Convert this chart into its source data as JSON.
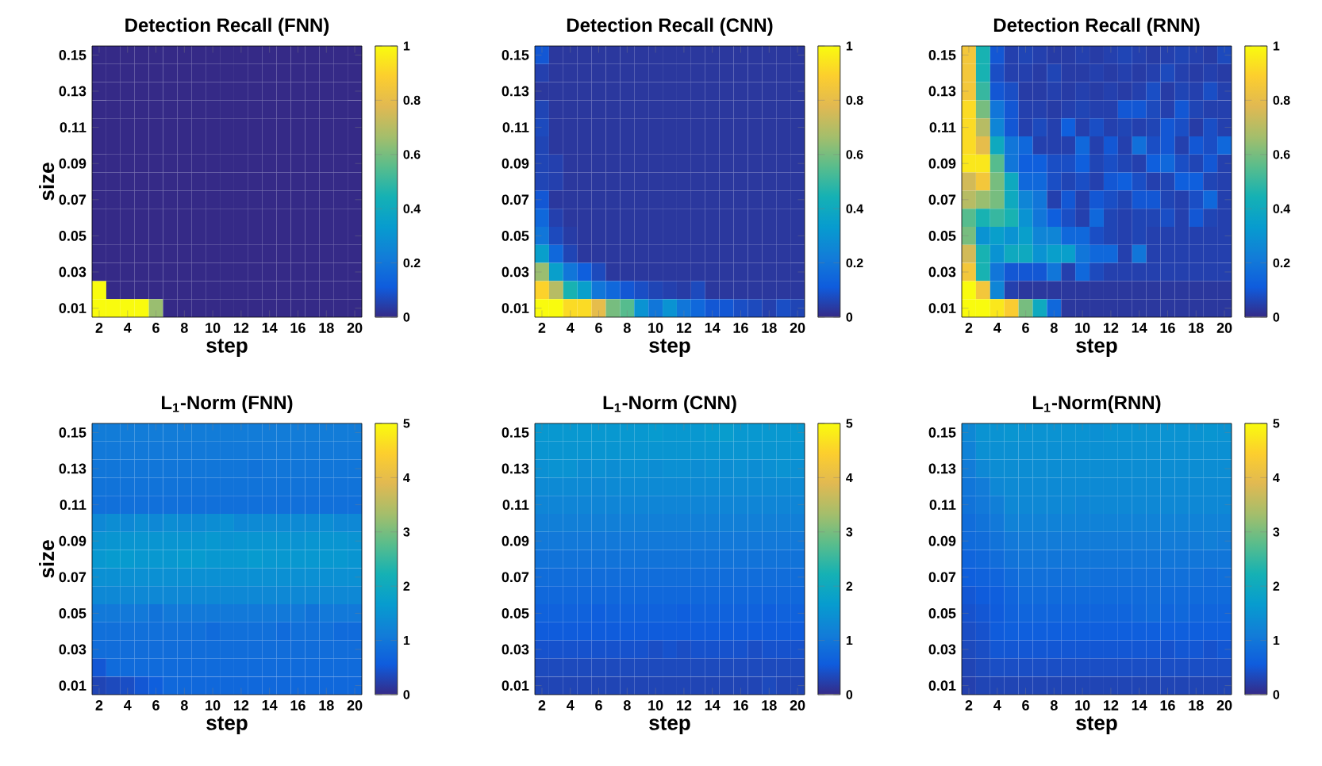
{
  "chart_data": [
    {
      "type": "heatmap",
      "title": "Detection Recall (FNN)",
      "xlabel": "step",
      "ylabel": "size",
      "categories": [
        "2",
        null,
        "4",
        null,
        "6",
        null,
        "8",
        null,
        "10",
        null,
        "12",
        null,
        "14",
        null,
        "16",
        null,
        "18",
        null,
        "20"
      ],
      "y_categories": [
        "0.15",
        null,
        "0.13",
        null,
        "0.11",
        null,
        "0.09",
        null,
        "0.07",
        null,
        "0.05",
        null,
        "0.03",
        null,
        "0.01"
      ],
      "clim": [
        0,
        1
      ],
      "cticks": [
        0,
        0.2,
        0.4,
        0.6,
        0.8,
        1
      ],
      "cells": [
        [
          0,
          0,
          0,
          0,
          0,
          0,
          0,
          0,
          0,
          0,
          0,
          0,
          0,
          0,
          0,
          0,
          0,
          0,
          0
        ],
        [
          0,
          0,
          0,
          0,
          0,
          0,
          0,
          0,
          0,
          0,
          0,
          0,
          0,
          0,
          0,
          0,
          0,
          0,
          0
        ],
        [
          0,
          0,
          0,
          0,
          0,
          0,
          0,
          0,
          0,
          0,
          0,
          0,
          0,
          0,
          0,
          0,
          0,
          0,
          0
        ],
        [
          0,
          0,
          0,
          0,
          0,
          0,
          0,
          0,
          0,
          0,
          0,
          0,
          0,
          0,
          0,
          0,
          0,
          0,
          0
        ],
        [
          0,
          0,
          0,
          0,
          0,
          0,
          0,
          0,
          0,
          0,
          0,
          0,
          0,
          0,
          0,
          0,
          0,
          0,
          0
        ],
        [
          0,
          0,
          0,
          0,
          0,
          0,
          0,
          0,
          0,
          0,
          0,
          0,
          0,
          0,
          0,
          0,
          0,
          0,
          0
        ],
        [
          0,
          0,
          0,
          0,
          0,
          0,
          0,
          0,
          0,
          0,
          0,
          0,
          0,
          0,
          0,
          0,
          0,
          0,
          0
        ],
        [
          0,
          0,
          0,
          0,
          0,
          0,
          0,
          0,
          0,
          0,
          0,
          0,
          0,
          0,
          0,
          0,
          0,
          0,
          0
        ],
        [
          0,
          0,
          0,
          0,
          0,
          0,
          0,
          0,
          0,
          0,
          0,
          0,
          0,
          0,
          0,
          0,
          0,
          0,
          0
        ],
        [
          0,
          0,
          0,
          0,
          0,
          0,
          0,
          0,
          0,
          0,
          0,
          0,
          0,
          0,
          0,
          0,
          0,
          0,
          0
        ],
        [
          0,
          0,
          0,
          0,
          0,
          0,
          0,
          0,
          0,
          0,
          0,
          0,
          0,
          0,
          0,
          0,
          0,
          0,
          0
        ],
        [
          0,
          0,
          0,
          0,
          0,
          0,
          0,
          0,
          0,
          0,
          0,
          0,
          0,
          0,
          0,
          0,
          0,
          0,
          0
        ],
        [
          0,
          0,
          0,
          0,
          0,
          0,
          0,
          0,
          0,
          0,
          0,
          0,
          0,
          0,
          0,
          0,
          0,
          0,
          0
        ],
        [
          1,
          0,
          0,
          0,
          0,
          0,
          0,
          0,
          0,
          0,
          0,
          0,
          0,
          0,
          0,
          0,
          0,
          0,
          0
        ],
        [
          1,
          1,
          1,
          1,
          0.65,
          0,
          0,
          0,
          0,
          0,
          0,
          0,
          0,
          0,
          0,
          0,
          0,
          0,
          0
        ]
      ]
    },
    {
      "type": "heatmap",
      "title": "Detection Recall (CNN)",
      "xlabel": "step",
      "categories": [
        "2",
        null,
        "4",
        null,
        "6",
        null,
        "8",
        null,
        "10",
        null,
        "12",
        null,
        "14",
        null,
        "16",
        null,
        "18",
        null,
        "20"
      ],
      "y_categories": [
        "0.15",
        null,
        "0.13",
        null,
        "0.11",
        null,
        "0.09",
        null,
        "0.07",
        null,
        "0.05",
        null,
        "0.03",
        null,
        "0.01"
      ],
      "clim": [
        0,
        1
      ],
      "cticks": [
        0,
        0.2,
        0.4,
        0.6,
        0.8,
        1
      ],
      "cells": [
        [
          0.1,
          0.03,
          0.03,
          0.03,
          0.03,
          0.03,
          0.03,
          0.03,
          0.03,
          0.03,
          0.03,
          0.03,
          0.03,
          0.03,
          0.03,
          0.03,
          0.03,
          0.03,
          0.03
        ],
        [
          0.05,
          0.03,
          0.03,
          0.03,
          0.03,
          0.03,
          0.03,
          0.03,
          0.03,
          0.03,
          0.03,
          0.03,
          0.03,
          0.03,
          0.03,
          0.03,
          0.03,
          0.03,
          0.03
        ],
        [
          0.03,
          0.03,
          0.03,
          0.03,
          0.03,
          0.03,
          0.03,
          0.03,
          0.03,
          0.03,
          0.03,
          0.03,
          0.03,
          0.03,
          0.03,
          0.03,
          0.03,
          0.03,
          0.03
        ],
        [
          0.06,
          0.03,
          0.03,
          0.03,
          0.03,
          0.03,
          0.03,
          0.03,
          0.03,
          0.03,
          0.03,
          0.03,
          0.03,
          0.03,
          0.03,
          0.03,
          0.03,
          0.03,
          0.03
        ],
        [
          0.07,
          0.03,
          0.03,
          0.03,
          0.03,
          0.03,
          0.03,
          0.03,
          0.03,
          0.03,
          0.03,
          0.03,
          0.03,
          0.03,
          0.03,
          0.03,
          0.03,
          0.03,
          0.03
        ],
        [
          0.06,
          0.03,
          0.03,
          0.03,
          0.03,
          0.03,
          0.03,
          0.03,
          0.03,
          0.03,
          0.03,
          0.03,
          0.03,
          0.03,
          0.03,
          0.03,
          0.03,
          0.03,
          0.03
        ],
        [
          0.06,
          0.05,
          0.03,
          0.03,
          0.03,
          0.03,
          0.03,
          0.03,
          0.03,
          0.03,
          0.03,
          0.03,
          0.03,
          0.03,
          0.03,
          0.03,
          0.03,
          0.03,
          0.03
        ],
        [
          0.06,
          0.05,
          0.03,
          0.03,
          0.03,
          0.03,
          0.03,
          0.03,
          0.03,
          0.03,
          0.03,
          0.03,
          0.03,
          0.03,
          0.03,
          0.03,
          0.03,
          0.03,
          0.03
        ],
        [
          0.1,
          0.03,
          0.03,
          0.03,
          0.03,
          0.03,
          0.03,
          0.03,
          0.03,
          0.03,
          0.03,
          0.03,
          0.03,
          0.03,
          0.03,
          0.03,
          0.03,
          0.03,
          0.03
        ],
        [
          0.15,
          0.05,
          0.03,
          0.03,
          0.03,
          0.03,
          0.03,
          0.03,
          0.03,
          0.03,
          0.03,
          0.03,
          0.03,
          0.03,
          0.03,
          0.03,
          0.03,
          0.03,
          0.03
        ],
        [
          0.2,
          0.07,
          0.04,
          0.03,
          0.03,
          0.03,
          0.03,
          0.03,
          0.03,
          0.03,
          0.03,
          0.03,
          0.03,
          0.03,
          0.03,
          0.03,
          0.03,
          0.03,
          0.03
        ],
        [
          0.35,
          0.15,
          0.06,
          0.03,
          0.03,
          0.03,
          0.03,
          0.03,
          0.03,
          0.03,
          0.03,
          0.03,
          0.03,
          0.03,
          0.03,
          0.03,
          0.03,
          0.03,
          0.03
        ],
        [
          0.65,
          0.35,
          0.2,
          0.12,
          0.07,
          0.03,
          0.03,
          0.03,
          0.03,
          0.03,
          0.03,
          0.03,
          0.03,
          0.03,
          0.03,
          0.03,
          0.03,
          0.03,
          0.03
        ],
        [
          0.9,
          0.7,
          0.45,
          0.35,
          0.2,
          0.15,
          0.1,
          0.08,
          0.06,
          0.05,
          0.04,
          0.07,
          0.03,
          0.03,
          0.03,
          0.03,
          0.03,
          0.03,
          0.03
        ],
        [
          1,
          1,
          0.92,
          0.92,
          0.8,
          0.6,
          0.55,
          0.3,
          0.2,
          0.3,
          0.2,
          0.15,
          0.1,
          0.1,
          0.08,
          0.07,
          0.05,
          0.08,
          0.06
        ]
      ]
    },
    {
      "type": "heatmap",
      "title": "Detection Recall (RNN)",
      "xlabel": "step",
      "categories": [
        "2",
        null,
        "4",
        null,
        "6",
        null,
        "8",
        null,
        "10",
        null,
        "12",
        null,
        "14",
        null,
        "16",
        null,
        "18",
        null,
        "20"
      ],
      "y_categories": [
        "0.15",
        null,
        "0.13",
        null,
        "0.11",
        null,
        "0.09",
        null,
        "0.07",
        null,
        "0.05",
        null,
        "0.03",
        null,
        "0.01"
      ],
      "clim": [
        0,
        1
      ],
      "cticks": [
        0,
        0.2,
        0.4,
        0.6,
        0.8,
        1
      ],
      "cells": [
        [
          0.85,
          0.45,
          0.1,
          0.05,
          0.06,
          0.05,
          0.04,
          0.04,
          0.05,
          0.04,
          0.05,
          0.06,
          0.05,
          0.04,
          0.05,
          0.06,
          0.05,
          0.04,
          0.07
        ],
        [
          0.85,
          0.45,
          0.08,
          0.05,
          0.05,
          0.04,
          0.06,
          0.04,
          0.04,
          0.05,
          0.04,
          0.05,
          0.04,
          0.05,
          0.07,
          0.05,
          0.04,
          0.05,
          0.04
        ],
        [
          0.85,
          0.5,
          0.1,
          0.08,
          0.04,
          0.04,
          0.05,
          0.04,
          0.05,
          0.04,
          0.05,
          0.04,
          0.05,
          0.08,
          0.04,
          0.06,
          0.05,
          0.08,
          0.05
        ],
        [
          0.92,
          0.6,
          0.2,
          0.1,
          0.05,
          0.05,
          0.04,
          0.05,
          0.06,
          0.05,
          0.05,
          0.1,
          0.1,
          0.07,
          0.05,
          0.1,
          0.06,
          0.05,
          0.05
        ],
        [
          0.92,
          0.7,
          0.25,
          0.1,
          0.05,
          0.07,
          0.05,
          0.12,
          0.05,
          0.08,
          0.05,
          0.06,
          0.05,
          0.06,
          0.1,
          0.08,
          0.04,
          0.08,
          0.05
        ],
        [
          0.92,
          0.8,
          0.4,
          0.2,
          0.15,
          0.05,
          0.05,
          0.05,
          0.15,
          0.05,
          0.1,
          0.05,
          0.18,
          0.08,
          0.1,
          0.05,
          0.1,
          0.08,
          0.15
        ],
        [
          0.95,
          0.95,
          0.55,
          0.2,
          0.12,
          0.12,
          0.08,
          0.08,
          0.12,
          0.06,
          0.08,
          0.06,
          0.05,
          0.12,
          0.15,
          0.08,
          0.06,
          0.1,
          0.05
        ],
        [
          0.75,
          0.85,
          0.6,
          0.4,
          0.15,
          0.15,
          0.08,
          0.06,
          0.08,
          0.05,
          0.1,
          0.12,
          0.08,
          0.05,
          0.06,
          0.12,
          0.12,
          0.06,
          0.05
        ],
        [
          0.7,
          0.65,
          0.6,
          0.4,
          0.25,
          0.2,
          0.05,
          0.1,
          0.05,
          0.1,
          0.08,
          0.06,
          0.1,
          0.1,
          0.06,
          0.05,
          0.08,
          0.15,
          0.05
        ],
        [
          0.55,
          0.45,
          0.5,
          0.45,
          0.3,
          0.2,
          0.12,
          0.08,
          0.05,
          0.15,
          0.06,
          0.05,
          0.06,
          0.06,
          0.08,
          0.05,
          0.1,
          0.06,
          0.05
        ],
        [
          0.6,
          0.3,
          0.35,
          0.3,
          0.35,
          0.25,
          0.25,
          0.15,
          0.15,
          0.08,
          0.06,
          0.05,
          0.06,
          0.05,
          0.05,
          0.05,
          0.05,
          0.05,
          0.05
        ],
        [
          0.75,
          0.45,
          0.3,
          0.4,
          0.4,
          0.3,
          0.35,
          0.35,
          0.2,
          0.15,
          0.15,
          0.05,
          0.2,
          0.05,
          0.05,
          0.05,
          0.05,
          0.05,
          0.05
        ],
        [
          0.85,
          0.45,
          0.2,
          0.1,
          0.1,
          0.1,
          0.2,
          0.05,
          0.15,
          0.07,
          0.05,
          0.05,
          0.05,
          0.05,
          0.05,
          0.05,
          0.05,
          0.05,
          0.05
        ],
        [
          1,
          0.85,
          0.25,
          0.05,
          0.03,
          0.03,
          0.03,
          0.03,
          0.03,
          0.03,
          0.03,
          0.03,
          0.03,
          0.03,
          0.03,
          0.03,
          0.03,
          0.03,
          0.03
        ],
        [
          1,
          1,
          0.95,
          0.88,
          0.6,
          0.4,
          0.15,
          0.03,
          0.03,
          0.03,
          0.03,
          0.03,
          0.03,
          0.03,
          0.03,
          0.03,
          0.03,
          0.03,
          0.03
        ]
      ]
    },
    {
      "type": "heatmap",
      "title": "L$_{1}$-Norm (FNN)",
      "xlabel": "step",
      "ylabel": "size",
      "categories": [
        "2",
        null,
        "4",
        null,
        "6",
        null,
        "8",
        null,
        "10",
        null,
        "12",
        null,
        "14",
        null,
        "16",
        null,
        "18",
        null,
        "20"
      ],
      "y_categories": [
        "0.15",
        null,
        "0.13",
        null,
        "0.11",
        null,
        "0.09",
        null,
        "0.07",
        null,
        "0.05",
        null,
        "0.03",
        null,
        "0.01"
      ],
      "clim": [
        0,
        5
      ],
      "cticks": [
        0,
        1,
        2,
        3,
        4,
        5
      ],
      "cells": [
        [
          1.1,
          1.1,
          1.1,
          1.1,
          1.1,
          1.1,
          1.1,
          1.1,
          1.1,
          1.1,
          1.1,
          1.1,
          1.1,
          1.1,
          1.1,
          1.1,
          1.1,
          1.1,
          1.1
        ],
        [
          1.05,
          1.05,
          1.05,
          1.05,
          1.05,
          1.05,
          1.05,
          1.05,
          1.05,
          1.05,
          1.05,
          1.05,
          1.05,
          1.05,
          1.05,
          1.05,
          1.05,
          1.05,
          1.05
        ],
        [
          1,
          1,
          1,
          1,
          1,
          1,
          1,
          1,
          1,
          1,
          1,
          0.95,
          1,
          1,
          1,
          1,
          1,
          1,
          1
        ],
        [
          0.95,
          0.95,
          0.95,
          0.95,
          0.95,
          0.95,
          0.95,
          0.95,
          0.95,
          0.95,
          0.95,
          0.95,
          0.95,
          0.95,
          0.95,
          0.95,
          0.95,
          0.95,
          0.95
        ],
        [
          0.9,
          0.9,
          0.9,
          0.9,
          0.9,
          0.9,
          0.9,
          0.9,
          0.9,
          0.9,
          0.9,
          0.9,
          0.9,
          0.9,
          0.9,
          0.9,
          0.9,
          0.9,
          0.9
        ],
        [
          1.3,
          1.4,
          1.3,
          1.4,
          1.3,
          1.4,
          1.35,
          1.35,
          1.4,
          1.45,
          1.3,
          1.35,
          1.35,
          1.35,
          1.35,
          1.35,
          1.4,
          1.3,
          1.3
        ],
        [
          1.5,
          1.55,
          1.55,
          1.55,
          1.55,
          1.55,
          1.55,
          1.55,
          1.6,
          1.5,
          1.55,
          1.55,
          1.55,
          1.55,
          1.5,
          1.55,
          1.55,
          1.55,
          1.5
        ],
        [
          1.6,
          1.65,
          1.65,
          1.6,
          1.6,
          1.6,
          1.65,
          1.65,
          1.6,
          1.6,
          1.6,
          1.65,
          1.6,
          1.6,
          1.6,
          1.6,
          1.6,
          1.6,
          1.55
        ],
        [
          1.45,
          1.45,
          1.45,
          1.45,
          1.45,
          1.45,
          1.45,
          1.45,
          1.45,
          1.45,
          1.45,
          1.45,
          1.45,
          1.45,
          1.45,
          1.45,
          1.45,
          1.45,
          1.45
        ],
        [
          1.3,
          1.3,
          1.3,
          1.3,
          1.3,
          1.3,
          1.3,
          1.3,
          1.3,
          1.3,
          1.3,
          1.3,
          1.3,
          1.3,
          1.3,
          1.3,
          1.3,
          1.3,
          1.3
        ],
        [
          1.05,
          1.05,
          1.05,
          1.05,
          0.95,
          1.05,
          1.05,
          1.05,
          1.05,
          1.05,
          1.05,
          1.05,
          1.05,
          1.05,
          1.05,
          0.95,
          1.05,
          1.05,
          1.05
        ],
        [
          0.9,
          0.9,
          0.9,
          0.9,
          0.9,
          0.9,
          0.9,
          0.9,
          0.8,
          0.9,
          0.9,
          0.9,
          0.9,
          0.8,
          0.9,
          0.9,
          0.9,
          0.8,
          0.8
        ],
        [
          0.85,
          0.85,
          0.85,
          0.85,
          0.85,
          0.85,
          0.85,
          0.85,
          0.85,
          0.85,
          0.85,
          0.85,
          0.85,
          0.85,
          0.85,
          0.85,
          0.85,
          0.85,
          0.85
        ],
        [
          0.5,
          0.8,
          0.8,
          0.8,
          0.8,
          0.8,
          0.8,
          0.8,
          0.8,
          0.8,
          0.8,
          0.8,
          0.8,
          0.8,
          0.8,
          0.8,
          0.8,
          0.8,
          0.8
        ],
        [
          0.3,
          0.35,
          0.4,
          0.5,
          0.6,
          0.75,
          0.75,
          0.75,
          0.75,
          0.75,
          0.75,
          0.75,
          0.75,
          0.75,
          0.75,
          0.75,
          0.75,
          0.75,
          0.75
        ]
      ]
    },
    {
      "type": "heatmap",
      "title": "L$_{1}$-Norm (CNN)",
      "xlabel": "step",
      "categories": [
        "2",
        null,
        "4",
        null,
        "6",
        null,
        "8",
        null,
        "10",
        null,
        "12",
        null,
        "14",
        null,
        "16",
        null,
        "18",
        null,
        "20"
      ],
      "y_categories": [
        "0.15",
        null,
        "0.13",
        null,
        "0.11",
        null,
        "0.09",
        null,
        "0.07",
        null,
        "0.05",
        null,
        "0.03",
        null,
        "0.01"
      ],
      "clim": [
        0,
        5
      ],
      "cticks": [
        0,
        1,
        2,
        3,
        4,
        5
      ],
      "cells": [
        [
          1.6,
          1.6,
          1.6,
          1.6,
          1.6,
          1.6,
          1.6,
          1.6,
          1.65,
          1.6,
          1.6,
          1.6,
          1.65,
          1.7,
          1.6,
          1.6,
          1.6,
          1.6,
          1.6
        ],
        [
          1.55,
          1.55,
          1.55,
          1.55,
          1.55,
          1.55,
          1.55,
          1.55,
          1.55,
          1.55,
          1.55,
          1.55,
          1.55,
          1.55,
          1.55,
          1.55,
          1.55,
          1.55,
          1.55
        ],
        [
          1.45,
          1.5,
          1.5,
          1.4,
          1.45,
          1.4,
          1.45,
          1.45,
          1.4,
          1.45,
          1.45,
          1.4,
          1.45,
          1.4,
          1.45,
          1.4,
          1.45,
          1.5,
          1.45
        ],
        [
          1.35,
          1.35,
          1.35,
          1.35,
          1.3,
          1.35,
          1.35,
          1.35,
          1.35,
          1.35,
          1.35,
          1.35,
          1.35,
          1.35,
          1.35,
          1.35,
          1.35,
          1.35,
          1.35
        ],
        [
          1.25,
          1.25,
          1.25,
          1.25,
          1.25,
          1.25,
          1.25,
          1.25,
          1.25,
          1.25,
          1.25,
          1.25,
          1.25,
          1.25,
          1.25,
          1.25,
          1.25,
          1.25,
          1.25
        ],
        [
          1.15,
          1.15,
          1.15,
          1.15,
          1.15,
          1.15,
          1.15,
          1.15,
          1.15,
          1.15,
          1.15,
          1.15,
          1.15,
          1.15,
          1.15,
          1.15,
          1.15,
          1.15,
          1.15
        ],
        [
          1.05,
          1.05,
          1.05,
          1.05,
          1.05,
          1.05,
          1.05,
          1.05,
          1.05,
          1.05,
          1.05,
          1.05,
          1.05,
          1.05,
          1.05,
          1.05,
          1.05,
          1.05,
          1.05
        ],
        [
          0.95,
          0.95,
          0.95,
          0.95,
          0.95,
          0.95,
          0.95,
          0.95,
          0.95,
          0.95,
          0.95,
          0.95,
          0.95,
          0.95,
          0.95,
          0.95,
          0.95,
          0.95,
          0.95
        ],
        [
          0.85,
          0.85,
          0.85,
          0.85,
          0.85,
          0.85,
          0.85,
          0.85,
          0.85,
          0.85,
          0.85,
          0.85,
          0.85,
          0.85,
          0.85,
          0.85,
          0.85,
          0.85,
          0.85
        ],
        [
          0.75,
          0.75,
          0.75,
          0.75,
          0.75,
          0.75,
          0.75,
          0.75,
          0.75,
          0.75,
          0.75,
          0.75,
          0.75,
          0.75,
          0.75,
          0.75,
          0.75,
          0.75,
          0.75
        ],
        [
          0.65,
          0.65,
          0.65,
          0.65,
          0.6,
          0.65,
          0.65,
          0.65,
          0.65,
          0.65,
          0.6,
          0.65,
          0.65,
          0.65,
          0.65,
          0.65,
          0.6,
          0.65,
          0.65
        ],
        [
          0.55,
          0.55,
          0.55,
          0.55,
          0.55,
          0.55,
          0.55,
          0.55,
          0.55,
          0.55,
          0.55,
          0.55,
          0.55,
          0.55,
          0.55,
          0.55,
          0.55,
          0.55,
          0.55
        ],
        [
          0.45,
          0.45,
          0.45,
          0.45,
          0.45,
          0.45,
          0.45,
          0.45,
          0.4,
          0.45,
          0.4,
          0.45,
          0.45,
          0.45,
          0.45,
          0.4,
          0.45,
          0.45,
          0.45
        ],
        [
          0.35,
          0.35,
          0.35,
          0.35,
          0.35,
          0.35,
          0.35,
          0.35,
          0.35,
          0.35,
          0.35,
          0.35,
          0.35,
          0.35,
          0.35,
          0.35,
          0.35,
          0.35,
          0.35
        ],
        [
          0.3,
          0.3,
          0.3,
          0.3,
          0.3,
          0.3,
          0.3,
          0.3,
          0.3,
          0.3,
          0.3,
          0.3,
          0.3,
          0.3,
          0.3,
          0.3,
          0.35,
          0.3,
          0.3
        ]
      ]
    },
    {
      "type": "heatmap",
      "title": "L$_{1}$-Norm(RNN)",
      "xlabel": "step",
      "categories": [
        "2",
        null,
        "4",
        null,
        "6",
        null,
        "8",
        null,
        "10",
        null,
        "12",
        null,
        "14",
        null,
        "16",
        null,
        "18",
        null,
        "20"
      ],
      "y_categories": [
        "0.15",
        null,
        "0.13",
        null,
        "0.11",
        null,
        "0.09",
        null,
        "0.07",
        null,
        "0.05",
        null,
        "0.03",
        null,
        "0.01"
      ],
      "clim": [
        0,
        5
      ],
      "cticks": [
        0,
        1,
        2,
        3,
        4,
        5
      ],
      "cells": [
        [
          1.3,
          1.5,
          1.5,
          1.55,
          1.5,
          1.5,
          1.5,
          1.5,
          1.5,
          1.45,
          1.5,
          1.5,
          1.5,
          1.5,
          1.5,
          1.5,
          1.5,
          1.55,
          1.5
        ],
        [
          1.2,
          1.45,
          1.45,
          1.45,
          1.45,
          1.45,
          1.45,
          1.45,
          1.45,
          1.45,
          1.45,
          1.45,
          1.45,
          1.45,
          1.45,
          1.45,
          1.45,
          1.45,
          1.45
        ],
        [
          1.1,
          1.3,
          1.4,
          1.4,
          1.4,
          1.4,
          1.4,
          1.4,
          1.4,
          1.4,
          1.4,
          1.4,
          1.4,
          1.4,
          1.4,
          1.4,
          1.4,
          1.4,
          1.4
        ],
        [
          1,
          1.1,
          1.3,
          1.35,
          1.35,
          1.35,
          1.35,
          1.35,
          1.35,
          1.35,
          1.35,
          1.35,
          1.35,
          1.35,
          1.35,
          1.35,
          1.35,
          1.35,
          1.35
        ],
        [
          0.95,
          1.05,
          1.15,
          1.3,
          1.3,
          1.3,
          1.3,
          1.3,
          1.25,
          1.3,
          1.3,
          1.3,
          1.3,
          1.3,
          1.3,
          1.3,
          1.3,
          1.3,
          1.3
        ],
        [
          0.85,
          0.95,
          1.05,
          1.2,
          1.2,
          1.2,
          1.2,
          1.2,
          1.2,
          1.2,
          1.2,
          1.2,
          1.2,
          1.2,
          1.2,
          1.2,
          1.2,
          1.2,
          1.2
        ],
        [
          0.8,
          0.85,
          0.95,
          1.05,
          1.1,
          1.1,
          1.1,
          1.1,
          1.1,
          1.1,
          1.1,
          1.1,
          1.1,
          1.1,
          1.1,
          1.1,
          1.1,
          1.15,
          1.1
        ],
        [
          0.7,
          0.75,
          0.85,
          0.95,
          1,
          1,
          1,
          1,
          1,
          1,
          1,
          1,
          1,
          1,
          1,
          1,
          1,
          1,
          1
        ],
        [
          0.6,
          0.65,
          0.7,
          0.8,
          0.9,
          0.9,
          0.9,
          0.9,
          0.95,
          0.9,
          0.9,
          0.9,
          0.9,
          0.9,
          0.9,
          0.9,
          0.9,
          0.85,
          0.9
        ],
        [
          0.5,
          0.55,
          0.6,
          0.7,
          0.8,
          0.8,
          0.8,
          0.8,
          0.8,
          0.8,
          0.8,
          0.8,
          0.8,
          0.85,
          0.8,
          0.8,
          0.8,
          0.8,
          0.8
        ],
        [
          0.45,
          0.5,
          0.55,
          0.65,
          0.7,
          0.7,
          0.7,
          0.7,
          0.7,
          0.7,
          0.7,
          0.7,
          0.75,
          0.8,
          0.7,
          0.75,
          0.7,
          0.7,
          0.7
        ],
        [
          0.4,
          0.45,
          0.55,
          0.6,
          0.6,
          0.6,
          0.6,
          0.6,
          0.6,
          0.6,
          0.6,
          0.6,
          0.6,
          0.6,
          0.6,
          0.6,
          0.6,
          0.6,
          0.6
        ],
        [
          0.35,
          0.4,
          0.5,
          0.5,
          0.5,
          0.5,
          0.5,
          0.5,
          0.5,
          0.5,
          0.5,
          0.5,
          0.5,
          0.5,
          0.45,
          0.5,
          0.5,
          0.45,
          0.5
        ],
        [
          0.3,
          0.35,
          0.4,
          0.4,
          0.4,
          0.4,
          0.4,
          0.4,
          0.4,
          0.4,
          0.4,
          0.4,
          0.4,
          0.4,
          0.4,
          0.4,
          0.4,
          0.4,
          0.4
        ],
        [
          0.25,
          0.3,
          0.3,
          0.3,
          0.3,
          0.3,
          0.3,
          0.3,
          0.3,
          0.3,
          0.3,
          0.3,
          0.3,
          0.3,
          0.3,
          0.3,
          0.3,
          0.3,
          0.3
        ]
      ]
    }
  ]
}
